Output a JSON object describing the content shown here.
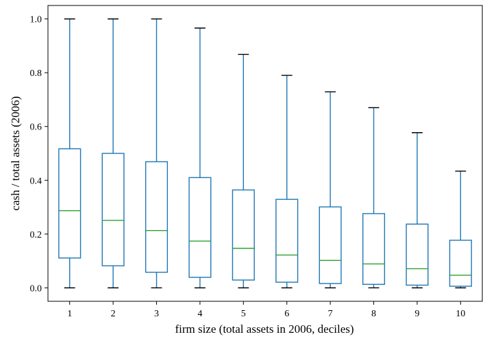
{
  "chart_data": {
    "type": "box",
    "title": "",
    "xlabel": "firm size (total assets in 2006, deciles)",
    "ylabel": "cash / total assets (2006)",
    "categories": [
      "1",
      "2",
      "3",
      "4",
      "5",
      "6",
      "7",
      "8",
      "9",
      "10"
    ],
    "ylim": [
      -0.05,
      1.05
    ],
    "yticks": [
      0.0,
      0.2,
      0.4,
      0.6,
      0.8,
      1.0
    ],
    "ytick_labels": [
      "0.0",
      "0.2",
      "0.4",
      "0.6",
      "0.8",
      "1.0"
    ],
    "grid": false,
    "boxes": [
      {
        "category": "1",
        "whisker_low": 0.0,
        "q1": 0.111,
        "median": 0.287,
        "q3": 0.517,
        "whisker_high": 1.0
      },
      {
        "category": "2",
        "whisker_low": 0.0,
        "q1": 0.082,
        "median": 0.251,
        "q3": 0.5,
        "whisker_high": 1.0
      },
      {
        "category": "3",
        "whisker_low": 0.0,
        "q1": 0.058,
        "median": 0.213,
        "q3": 0.469,
        "whisker_high": 1.0
      },
      {
        "category": "4",
        "whisker_low": 0.0,
        "q1": 0.039,
        "median": 0.174,
        "q3": 0.41,
        "whisker_high": 0.966
      },
      {
        "category": "5",
        "whisker_low": 0.0,
        "q1": 0.029,
        "median": 0.147,
        "q3": 0.364,
        "whisker_high": 0.868
      },
      {
        "category": "6",
        "whisker_low": 0.0,
        "q1": 0.021,
        "median": 0.122,
        "q3": 0.329,
        "whisker_high": 0.79
      },
      {
        "category": "7",
        "whisker_low": 0.0,
        "q1": 0.016,
        "median": 0.102,
        "q3": 0.301,
        "whisker_high": 0.729
      },
      {
        "category": "8",
        "whisker_low": 0.0,
        "q1": 0.013,
        "median": 0.089,
        "q3": 0.276,
        "whisker_high": 0.67
      },
      {
        "category": "9",
        "whisker_low": 0.0,
        "q1": 0.01,
        "median": 0.071,
        "q3": 0.237,
        "whisker_high": 0.577
      },
      {
        "category": "10",
        "whisker_low": 0.0,
        "q1": 0.006,
        "median": 0.047,
        "q3": 0.177,
        "whisker_high": 0.434
      }
    ],
    "colors": {
      "box": "#1f77b4",
      "median": "#2ca02c",
      "cap": "#000000",
      "axes": "#000000"
    }
  }
}
